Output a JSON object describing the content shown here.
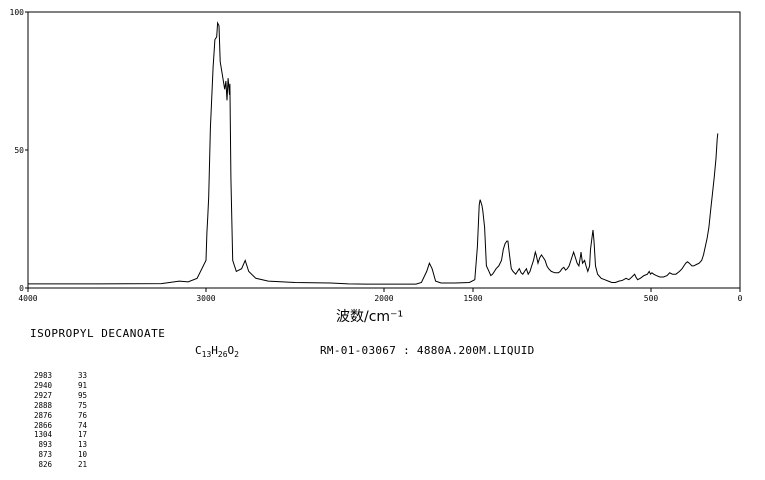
{
  "chart_data": {
    "type": "line",
    "title": "",
    "xlabel": "波数/cm⁻¹",
    "ylabel": "",
    "xlim": [
      4000,
      0
    ],
    "ylim": [
      0,
      100
    ],
    "x_ticks": [
      4000,
      3000,
      2000,
      1500,
      500,
      0
    ],
    "x_tick_labels": [
      "4000",
      "3000",
      "2000",
      "1500",
      "500",
      "0"
    ],
    "y_ticks": [
      0,
      50,
      100
    ],
    "y_tick_labels": [
      "0",
      "50",
      "100"
    ],
    "grid": false,
    "legend": "none",
    "series": [
      {
        "line_color": "#000000",
        "points": [
          [
            4000,
            1.5
          ],
          [
            3600,
            1.5
          ],
          [
            3250,
            1.6
          ],
          [
            3150,
            2.5
          ],
          [
            3100,
            2.2
          ],
          [
            3050,
            3.5
          ],
          [
            3000,
            10
          ],
          [
            2995,
            20
          ],
          [
            2990,
            26
          ],
          [
            2985,
            33
          ],
          [
            2975,
            58
          ],
          [
            2960,
            80
          ],
          [
            2950,
            90
          ],
          [
            2940,
            91
          ],
          [
            2935,
            96
          ],
          [
            2927,
            95
          ],
          [
            2920,
            82
          ],
          [
            2910,
            78
          ],
          [
            2895,
            72
          ],
          [
            2888,
            75
          ],
          [
            2882,
            68
          ],
          [
            2876,
            76
          ],
          [
            2868,
            70
          ],
          [
            2866,
            74
          ],
          [
            2860,
            40
          ],
          [
            2850,
            10
          ],
          [
            2830,
            6
          ],
          [
            2800,
            7
          ],
          [
            2780,
            10
          ],
          [
            2760,
            6
          ],
          [
            2720,
            3.5
          ],
          [
            2650,
            2.5
          ],
          [
            2500,
            2
          ],
          [
            2300,
            1.8
          ],
          [
            2200,
            1.5
          ],
          [
            2100,
            1.4
          ],
          [
            2000,
            1.4
          ],
          [
            1900,
            1.4
          ],
          [
            1820,
            1.4
          ],
          [
            1790,
            2
          ],
          [
            1760,
            6
          ],
          [
            1745,
            9
          ],
          [
            1730,
            7
          ],
          [
            1710,
            2.5
          ],
          [
            1680,
            1.8
          ],
          [
            1600,
            1.8
          ],
          [
            1520,
            2
          ],
          [
            1490,
            3
          ],
          [
            1475,
            15
          ],
          [
            1465,
            30
          ],
          [
            1460,
            32
          ],
          [
            1455,
            31
          ],
          [
            1450,
            30
          ],
          [
            1445,
            28
          ],
          [
            1435,
            22
          ],
          [
            1425,
            8
          ],
          [
            1410,
            6
          ],
          [
            1400,
            4.5
          ],
          [
            1390,
            5
          ],
          [
            1380,
            6
          ],
          [
            1370,
            7
          ],
          [
            1355,
            8
          ],
          [
            1340,
            10
          ],
          [
            1330,
            14
          ],
          [
            1320,
            16
          ],
          [
            1310,
            17
          ],
          [
            1304,
            17
          ],
          [
            1295,
            12
          ],
          [
            1285,
            7
          ],
          [
            1275,
            6
          ],
          [
            1260,
            5
          ],
          [
            1250,
            6
          ],
          [
            1240,
            7
          ],
          [
            1230,
            5.5
          ],
          [
            1220,
            5
          ],
          [
            1210,
            6
          ],
          [
            1200,
            7
          ],
          [
            1190,
            5
          ],
          [
            1180,
            6
          ],
          [
            1170,
            8
          ],
          [
            1160,
            10
          ],
          [
            1150,
            13
          ],
          [
            1145,
            12
          ],
          [
            1135,
            9
          ],
          [
            1125,
            11
          ],
          [
            1115,
            12
          ],
          [
            1105,
            11
          ],
          [
            1095,
            10
          ],
          [
            1085,
            8
          ],
          [
            1075,
            7
          ],
          [
            1060,
            6
          ],
          [
            1040,
            5.5
          ],
          [
            1020,
            5.5
          ],
          [
            1010,
            6
          ],
          [
            1000,
            7
          ],
          [
            990,
            7.5
          ],
          [
            980,
            6.5
          ],
          [
            970,
            7
          ],
          [
            960,
            8
          ],
          [
            950,
            10
          ],
          [
            940,
            12
          ],
          [
            935,
            13
          ],
          [
            925,
            11
          ],
          [
            915,
            9
          ],
          [
            905,
            8
          ],
          [
            895,
            12
          ],
          [
            893,
            13
          ],
          [
            885,
            9
          ],
          [
            873,
            10
          ],
          [
            865,
            8
          ],
          [
            855,
            6
          ],
          [
            845,
            8
          ],
          [
            840,
            14
          ],
          [
            832,
            18
          ],
          [
            826,
            21
          ],
          [
            820,
            17
          ],
          [
            812,
            8
          ],
          [
            800,
            5
          ],
          [
            780,
            3.5
          ],
          [
            760,
            3
          ],
          [
            740,
            2.5
          ],
          [
            720,
            2
          ],
          [
            700,
            2
          ],
          [
            680,
            2.5
          ],
          [
            660,
            2.8
          ],
          [
            640,
            3.5
          ],
          [
            625,
            3
          ],
          [
            615,
            3.5
          ],
          [
            600,
            4.5
          ],
          [
            592,
            5
          ],
          [
            585,
            4
          ],
          [
            575,
            3
          ],
          [
            560,
            3.5
          ],
          [
            540,
            4.5
          ],
          [
            520,
            5
          ],
          [
            510,
            6
          ],
          [
            503,
            5
          ],
          [
            495,
            5.5
          ],
          [
            485,
            5
          ],
          [
            470,
            4.5
          ],
          [
            450,
            4
          ],
          [
            430,
            4
          ],
          [
            410,
            4.5
          ],
          [
            395,
            5.5
          ],
          [
            380,
            5
          ],
          [
            360,
            5
          ],
          [
            340,
            6
          ],
          [
            325,
            7
          ],
          [
            315,
            8
          ],
          [
            305,
            9
          ],
          [
            295,
            9.5
          ],
          [
            285,
            9
          ],
          [
            270,
            8
          ],
          [
            260,
            8
          ],
          [
            245,
            8.5
          ],
          [
            230,
            9
          ],
          [
            215,
            10
          ],
          [
            205,
            12
          ],
          [
            195,
            15
          ],
          [
            185,
            18
          ],
          [
            175,
            22
          ],
          [
            165,
            28
          ],
          [
            155,
            34
          ],
          [
            145,
            40
          ],
          [
            135,
            47
          ],
          [
            128,
            54
          ],
          [
            125,
            56
          ]
        ]
      }
    ]
  },
  "compound_name": "ISOPROPYL DECANOATE",
  "formula": {
    "c": "C",
    "c_sub": "13",
    "h": "H",
    "h_sub": "26",
    "o": "O",
    "o_sub": "2"
  },
  "spectrum_id": "RM-01-03067 : 4880A.200M.LIQUID",
  "peak_table": [
    {
      "wavenumber": "2983",
      "intensity": "33"
    },
    {
      "wavenumber": "2940",
      "intensity": "91"
    },
    {
      "wavenumber": "2927",
      "intensity": "95"
    },
    {
      "wavenumber": "2888",
      "intensity": "75"
    },
    {
      "wavenumber": "2876",
      "intensity": "76"
    },
    {
      "wavenumber": "2866",
      "intensity": "74"
    },
    {
      "wavenumber": "1304",
      "intensity": "17"
    },
    {
      "wavenumber": "893",
      "intensity": "13"
    },
    {
      "wavenumber": "873",
      "intensity": "10"
    },
    {
      "wavenumber": "826",
      "intensity": "21"
    }
  ]
}
